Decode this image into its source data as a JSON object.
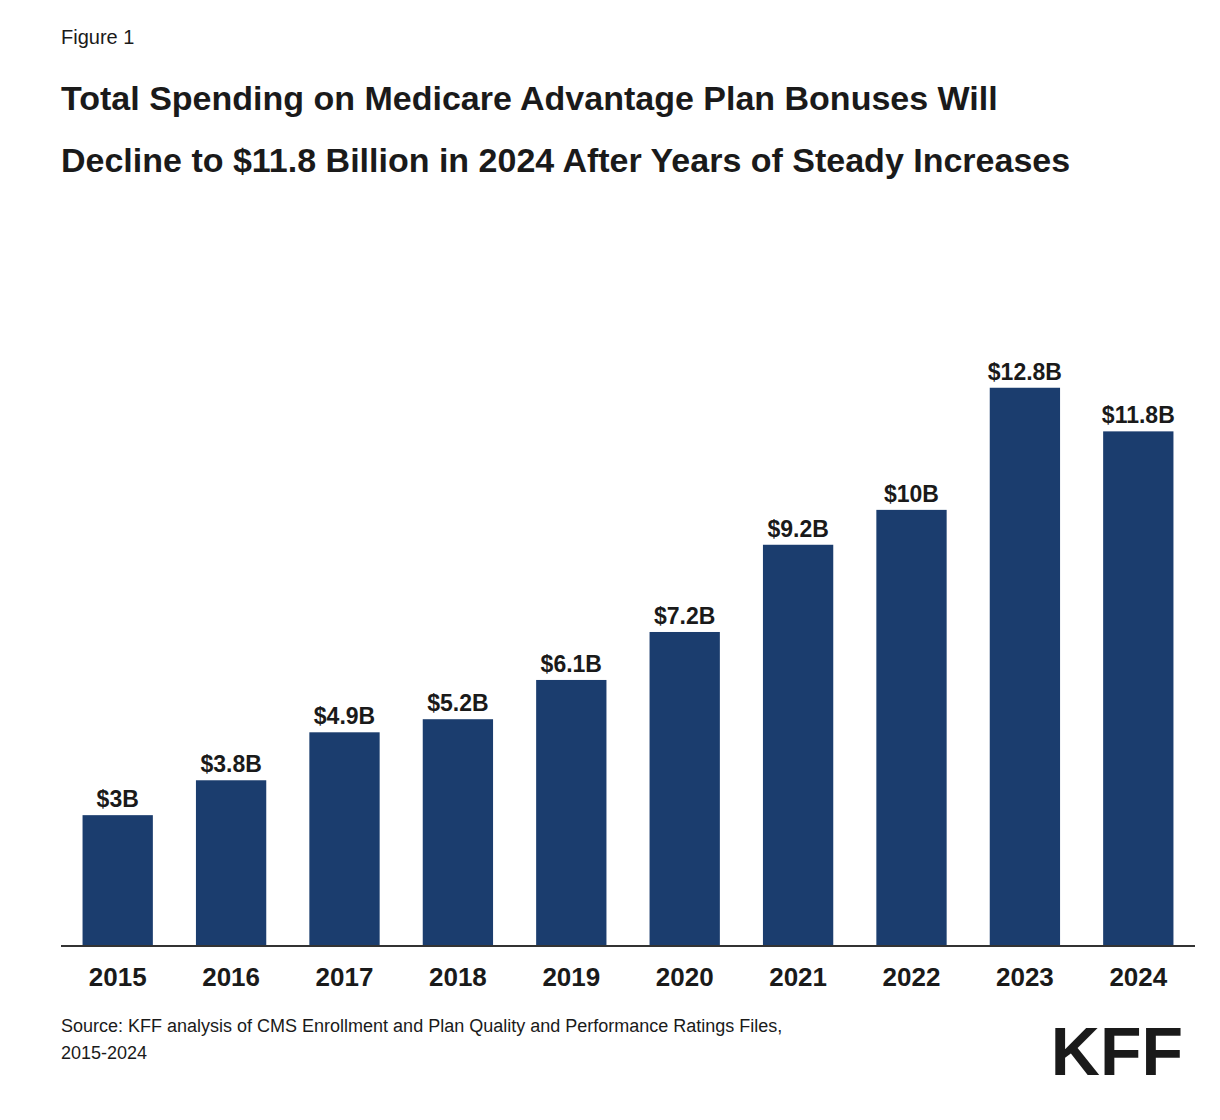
{
  "chart_data": {
    "type": "bar",
    "title": "Total Spending on Medicare Advantage Plan Bonuses Will\nDecline to $11.8 Billion in 2024 After Years of Steady Increases",
    "categories": [
      "2015",
      "2016",
      "2017",
      "2018",
      "2019",
      "2020",
      "2021",
      "2022",
      "2023",
      "2024"
    ],
    "values": [
      3.0,
      3.8,
      4.9,
      5.2,
      6.1,
      7.2,
      9.2,
      10.0,
      12.8,
      11.8
    ],
    "value_labels": [
      "$3B",
      "$3.8B",
      "$4.9B",
      "$5.2B",
      "$6.1B",
      "$7.2B",
      "$9.2B",
      "$10B",
      "$12.8B",
      "$11.8B"
    ],
    "color": "#1b3d6e",
    "ylim": [
      0,
      15.5
    ],
    "grid": false,
    "data_labels": true,
    "tick_labels": "x",
    "annotations": [
      "Figure 1",
      "Source: KFF analysis of CMS Enrollment and Plan Quality and Performance Ratings Files,\n2015-2024",
      "KFF"
    ]
  }
}
